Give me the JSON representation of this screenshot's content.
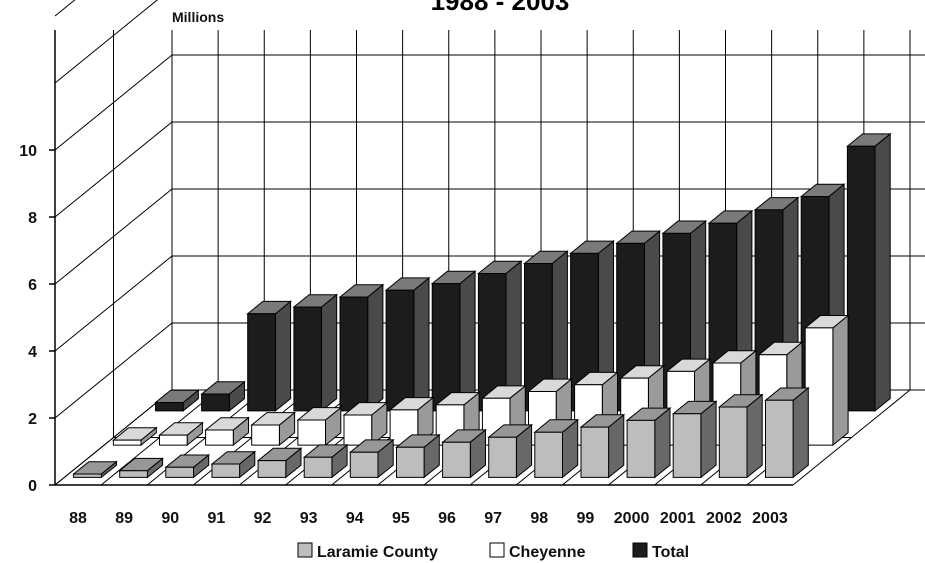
{
  "chart_data": {
    "type": "bar",
    "title": "1988 - 2003",
    "ylabel": "Millions",
    "ylim": [
      0,
      10
    ],
    "yticks": [
      "0",
      "2",
      "4",
      "6",
      "8",
      "10"
    ],
    "categories": [
      "88",
      "89",
      "90",
      "91",
      "92",
      "93",
      "94",
      "95",
      "96",
      "97",
      "98",
      "99",
      "2000",
      "2001",
      "2002",
      "2003"
    ],
    "series": [
      {
        "name": "Laramie County",
        "color": "#bdbdbd",
        "values": [
          0.1,
          0.2,
          0.3,
          0.4,
          0.5,
          0.6,
          0.75,
          0.9,
          1.05,
          1.2,
          1.35,
          1.5,
          1.7,
          1.9,
          2.1,
          2.3
        ]
      },
      {
        "name": "Cheyenne",
        "color": "#ffffff",
        "values": [
          0.15,
          0.3,
          0.45,
          0.6,
          0.75,
          0.9,
          1.05,
          1.2,
          1.4,
          1.6,
          1.8,
          2.0,
          2.2,
          2.45,
          2.7,
          3.5
        ]
      },
      {
        "name": "Total",
        "color": "#1c1c1c",
        "values": [
          0.25,
          0.5,
          2.9,
          3.1,
          3.4,
          3.6,
          3.8,
          4.1,
          4.4,
          4.7,
          5.0,
          5.3,
          5.6,
          6.0,
          6.4,
          7.9
        ]
      }
    ],
    "legend": "bottom",
    "grid": true
  }
}
